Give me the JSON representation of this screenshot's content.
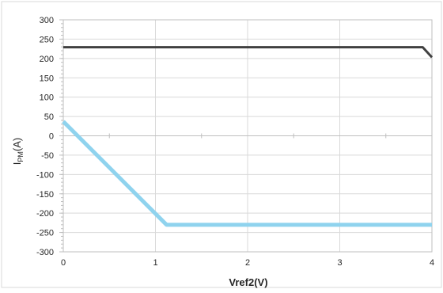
{
  "chart_data": {
    "type": "line",
    "xlabel": "Vref2(V)",
    "ylabel": {
      "main": "I",
      "sub": "PM",
      "unit": "(A)"
    },
    "xlim": [
      0,
      4
    ],
    "ylim": [
      -300,
      300
    ],
    "x_ticks": [
      0,
      1,
      2,
      3,
      4
    ],
    "y_ticks": [
      300,
      250,
      200,
      150,
      100,
      50,
      0,
      -50,
      -100,
      -150,
      -200,
      -250,
      -300
    ],
    "grid": true,
    "legend": "none",
    "series": [
      {
        "color": "#404040",
        "width": 3,
        "x": [
          0,
          3.9,
          4.0
        ],
        "y": [
          229,
          229,
          203
        ]
      },
      {
        "color": "#8fd3ee",
        "width": 5,
        "x": [
          0,
          1.12,
          4.0
        ],
        "y": [
          37,
          -230,
          -230
        ]
      }
    ]
  }
}
